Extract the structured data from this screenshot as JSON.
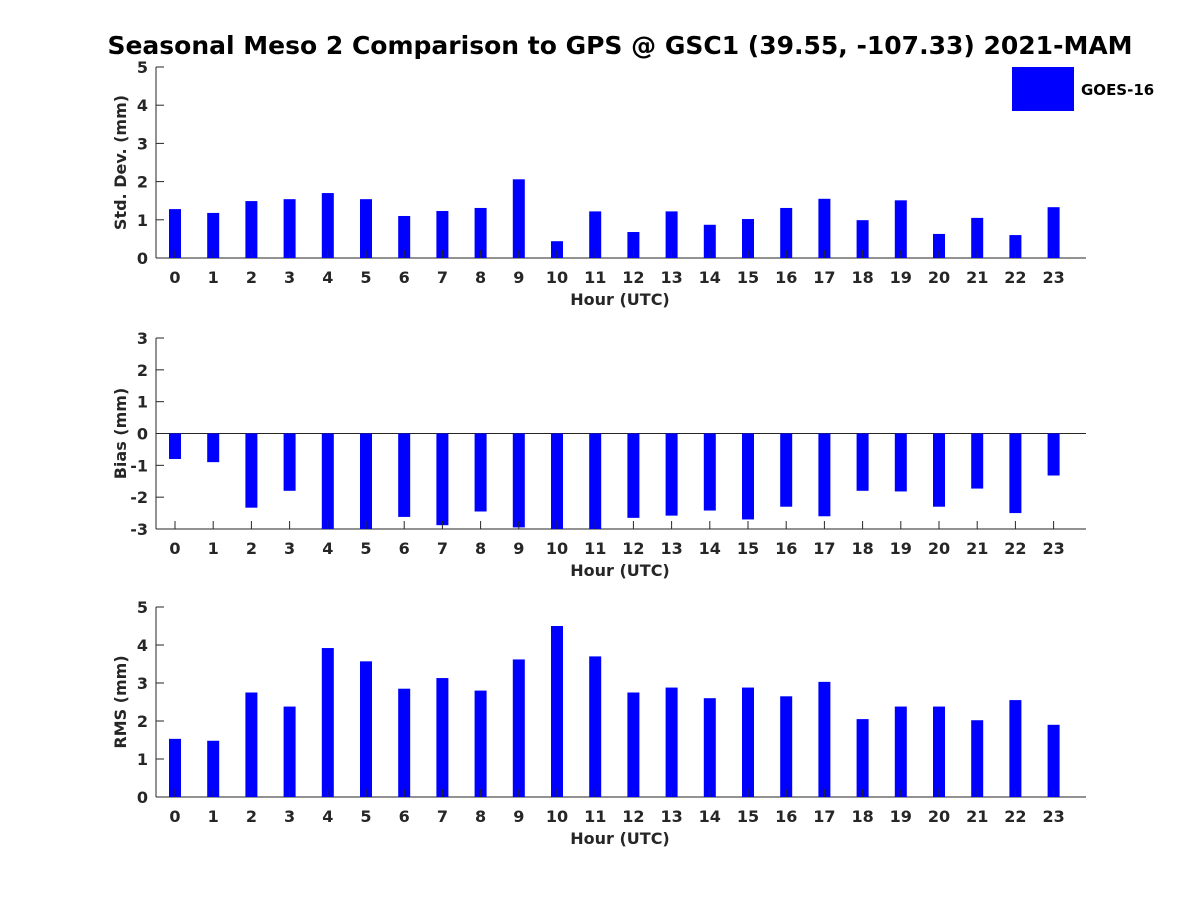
{
  "chart_data": {
    "title": "Seasonal Meso 2 Comparison to GPS @ GSC1 (39.55, -107.33) 2021-MAM",
    "legend": {
      "label": "GOES-16",
      "color": "#0000ff",
      "placement": "top-right"
    },
    "bar_color": "#0000ff",
    "panels": [
      {
        "type": "bar",
        "id": "std",
        "ylabel": "Std. Dev. (mm)",
        "xlabel": "Hour (UTC)",
        "ylim": [
          0,
          5
        ],
        "yticks": [
          "0",
          "1",
          "2",
          "3",
          "4",
          "5"
        ],
        "categories": [
          "0",
          "1",
          "2",
          "3",
          "4",
          "5",
          "6",
          "7",
          "8",
          "9",
          "10",
          "11",
          "12",
          "13",
          "14",
          "15",
          "16",
          "17",
          "18",
          "19",
          "20",
          "21",
          "22",
          "23"
        ],
        "values": [
          1.28,
          1.18,
          1.49,
          1.54,
          1.7,
          1.54,
          1.1,
          1.23,
          1.31,
          2.06,
          0.44,
          1.22,
          0.68,
          1.22,
          0.87,
          1.02,
          1.31,
          1.55,
          0.99,
          1.51,
          0.63,
          1.05,
          0.6,
          1.33
        ]
      },
      {
        "type": "bar",
        "id": "bias",
        "ylabel": "Bias (mm)",
        "xlabel": "Hour (UTC)",
        "ylim": [
          -3,
          3
        ],
        "yticks": [
          "-3",
          "-2",
          "-1",
          "0",
          "1",
          "2",
          "3"
        ],
        "categories": [
          "0",
          "1",
          "2",
          "3",
          "4",
          "5",
          "6",
          "7",
          "8",
          "9",
          "10",
          "11",
          "12",
          "13",
          "14",
          "15",
          "16",
          "17",
          "18",
          "19",
          "20",
          "21",
          "22",
          "23"
        ],
        "values": [
          -0.8,
          -0.9,
          -2.33,
          -1.8,
          -3.0,
          -3.0,
          -2.62,
          -2.88,
          -2.45,
          -2.95,
          -3.0,
          -3.0,
          -2.65,
          -2.58,
          -2.42,
          -2.7,
          -2.3,
          -2.6,
          -1.8,
          -1.82,
          -2.3,
          -1.73,
          -2.5,
          -1.32
        ]
      },
      {
        "type": "bar",
        "id": "rms",
        "ylabel": "RMS (mm)",
        "xlabel": "Hour (UTC)",
        "ylim": [
          0,
          5
        ],
        "yticks": [
          "0",
          "1",
          "2",
          "3",
          "4",
          "5"
        ],
        "categories": [
          "0",
          "1",
          "2",
          "3",
          "4",
          "5",
          "6",
          "7",
          "8",
          "9",
          "10",
          "11",
          "12",
          "13",
          "14",
          "15",
          "16",
          "17",
          "18",
          "19",
          "20",
          "21",
          "22",
          "23"
        ],
        "values": [
          1.53,
          1.48,
          2.75,
          2.38,
          3.92,
          3.57,
          2.85,
          3.13,
          2.8,
          3.62,
          4.5,
          3.7,
          2.75,
          2.88,
          2.6,
          2.88,
          2.65,
          3.03,
          2.05,
          2.38,
          2.38,
          2.02,
          2.55,
          1.9
        ]
      }
    ]
  }
}
